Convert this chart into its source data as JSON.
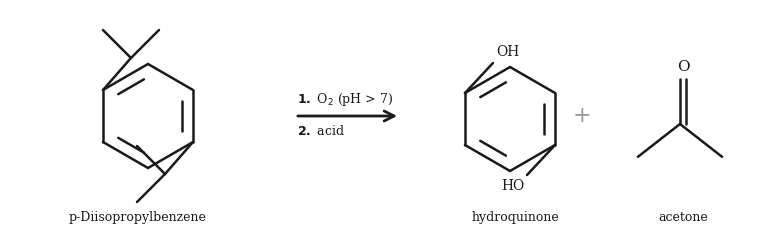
{
  "background_color": "#ffffff",
  "line_color": "#1a1a1a",
  "text_color": "#1a1a1a",
  "plus_color": "#999999",
  "fig_width": 7.81,
  "fig_height": 2.34,
  "dpi": 100,
  "label_p_diisopropylbenzene": "p-Diisopropylbenzene",
  "label_hydroquinone": "hydroquinone",
  "label_acetone": "acetone"
}
